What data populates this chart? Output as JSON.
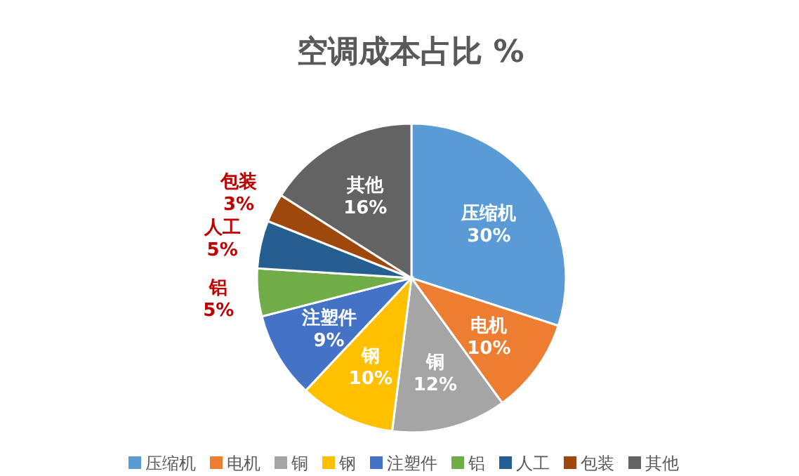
{
  "chart_data": {
    "type": "pie",
    "title": "空调成本占比 %",
    "categories": [
      "压缩机",
      "电机",
      "铜",
      "钢",
      "注塑件",
      "铝",
      "人工",
      "包装",
      "其他"
    ],
    "values": [
      30,
      10,
      12,
      10,
      9,
      5,
      5,
      3,
      16
    ],
    "colors": [
      "#5b9bd5",
      "#ed7d31",
      "#a5a5a5",
      "#ffc000",
      "#4472c4",
      "#70ad47",
      "#255e91",
      "#9e480e",
      "#636363"
    ],
    "value_labels": [
      "30%",
      "10%",
      "12%",
      "10%",
      "9%",
      "5%",
      "5%",
      "3%",
      "16%"
    ],
    "legend": "bottom"
  }
}
